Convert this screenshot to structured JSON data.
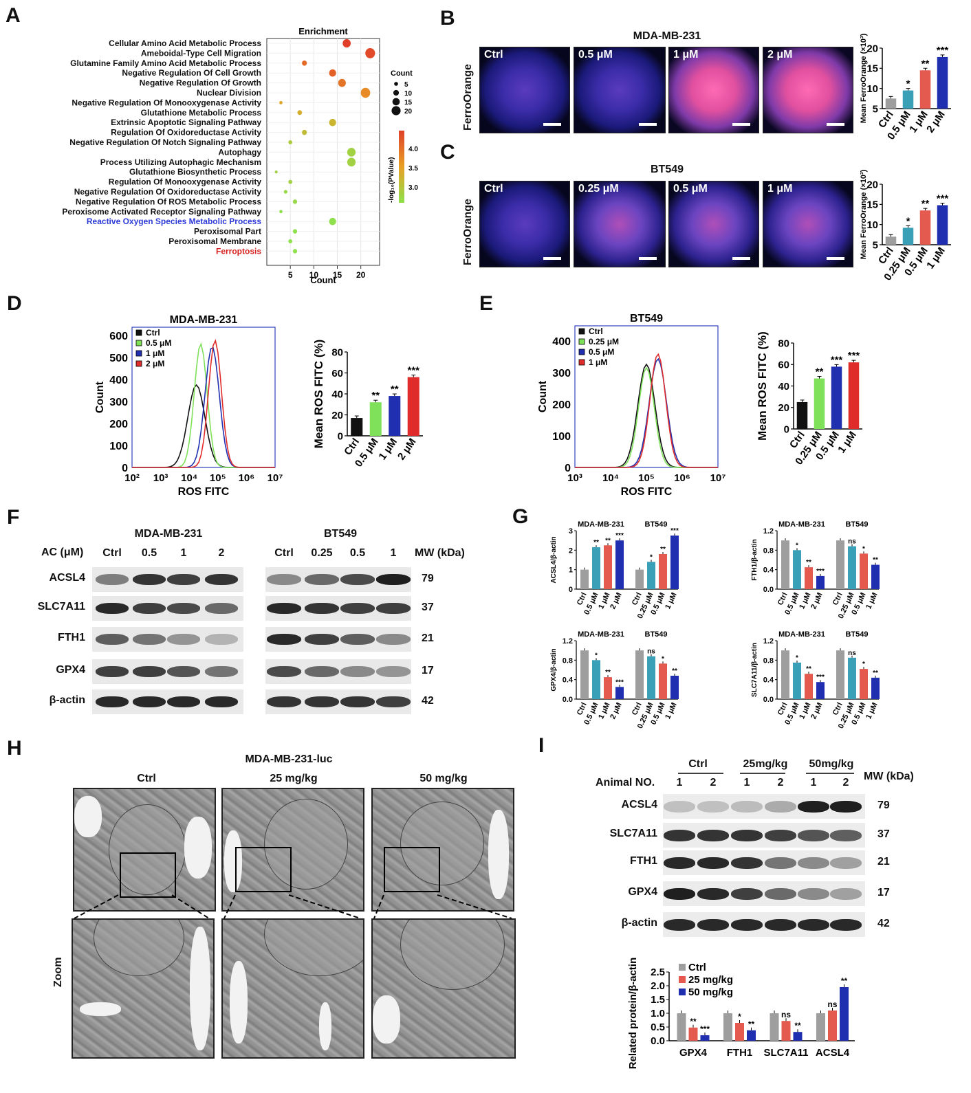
{
  "panels": {
    "A": "A",
    "B": "B",
    "C": "C",
    "D": "D",
    "E": "E",
    "F": "F",
    "G": "G",
    "H": "H",
    "I": "I"
  },
  "colors": {
    "ctrl_gray": "#9e9e9e",
    "teal": "#3aa0b7",
    "salmon": "#e55a4e",
    "navy": "#1f2fb0",
    "green": "#7fe05a",
    "red": "#e02b2b",
    "black": "#111111",
    "enrich_blue": "#2d3ad8",
    "enrich_red": "#d62020"
  },
  "panelA": {
    "title": "Enrichment",
    "xlabel": "Count",
    "legend_count_title": "Count",
    "legend_count_values": [
      "5",
      "10",
      "15",
      "20"
    ],
    "legend_p_title": "-log₁₀(PValue)",
    "legend_p_ticks": [
      "4.0",
      "3.5",
      "3.0"
    ],
    "terms": [
      "Cellular Amino Acid Metabolic Process",
      "Ameboidal-Type Cell Migration",
      "Glutamine Family Amino Acid Metabolic Process",
      "Negative Regulation Of Cell Growth",
      "Negative Regulation Of Growth",
      "Nuclear Division",
      "Negative Regulation Of Monooxygenase Activity",
      "Glutathione Metabolic Process",
      "Extrinsic Apoptotic Signaling Pathway",
      "Regulation Of Oxidoreductase Activity",
      "Negative Regulation Of Notch Signaling Pathway",
      "Autophagy",
      "Process Utilizing Autophagic Mechanism",
      "Glutathione Biosynthetic Process",
      "Regulation Of Monooxygenase Activity",
      "Negative Regulation Of Oxidoreductase Activity",
      "Negative Regulation Of ROS Metabolic Process",
      "Peroxisome Activated Receptor Signaling Pathway",
      "Reactive Oxygen Species Metabolic Process",
      "Peroxisomal Part",
      "Peroxisomal Membrane",
      "Ferroptosis"
    ],
    "counts": [
      17,
      22,
      8,
      14,
      16,
      21,
      3,
      7,
      14,
      8,
      5,
      18,
      18,
      2,
      5,
      4,
      6,
      3,
      14,
      6,
      5,
      6
    ],
    "neglog10p": [
      4.4,
      4.3,
      4.0,
      4.1,
      3.9,
      3.7,
      3.4,
      3.3,
      3.2,
      3.1,
      2.9,
      2.8,
      2.8,
      2.8,
      2.8,
      2.7,
      2.7,
      2.6,
      2.6,
      2.6,
      2.6,
      2.6
    ],
    "highlight_blue": "Reactive Oxygen Species Metabolic Process",
    "highlight_red": "Ferroptosis",
    "xticks": [
      "5",
      "10",
      "15",
      "20"
    ]
  },
  "panelB": {
    "title": "MDA-MB-231",
    "ylabel_left": "FerroOrange",
    "labels": [
      "Ctrl",
      "0.5 μM",
      "1 μM",
      "2 μM"
    ],
    "chart_data": {
      "type": "bar",
      "categories": [
        "Ctrl",
        "0.5 μM",
        "1 μM",
        "2 μM"
      ],
      "values": [
        7.5,
        9.5,
        14.5,
        17.8
      ],
      "ylim": [
        5,
        20
      ],
      "yticks": [
        "5",
        "10",
        "15",
        "20"
      ],
      "ylabel": "Mean FerroOrange (×10³)",
      "sig": [
        "",
        "*",
        "**",
        "***"
      ]
    }
  },
  "panelC": {
    "title": "BT549",
    "ylabel_left": "FerroOrange",
    "labels": [
      "Ctrl",
      "0.25 μM",
      "0.5 μM",
      "1 μM"
    ],
    "chart_data": {
      "type": "bar",
      "categories": [
        "Ctrl",
        "0.25 μM",
        "0.5 μM",
        "1 μM"
      ],
      "values": [
        7.0,
        9.2,
        13.5,
        14.8
      ],
      "ylim": [
        5,
        20
      ],
      "yticks": [
        "5",
        "10",
        "15",
        "20"
      ],
      "ylabel": "Mean FerroOrange (×10³)",
      "sig": [
        "",
        "*",
        "**",
        "***"
      ]
    }
  },
  "panelD": {
    "hist_title": "MDA-MB-231",
    "hist_xlabel": "ROS FITC",
    "hist_ylabel": "Count",
    "hist_yticks": [
      "0",
      "100",
      "200",
      "300",
      "400",
      "500",
      "600"
    ],
    "hist_xticks": [
      "10²",
      "10³",
      "10⁴",
      "10⁵",
      "10⁶",
      "10⁷"
    ],
    "legend": [
      "Ctrl",
      "0.5 μM",
      "1 μM",
      "2 μM"
    ],
    "chart_data": {
      "type": "bar",
      "categories": [
        "Ctrl",
        "0.5 μM",
        "1 μM",
        "2 μM"
      ],
      "values": [
        17,
        32,
        38,
        56
      ],
      "ylim": [
        0,
        80
      ],
      "yticks": [
        "0",
        "20",
        "40",
        "60",
        "80"
      ],
      "ylabel": "Mean ROS FITC (%)",
      "sig": [
        "",
        "**",
        "**",
        "***"
      ]
    }
  },
  "panelE": {
    "hist_title": "BT549",
    "hist_xlabel": "ROS FITC",
    "hist_ylabel": "Count",
    "hist_yticks": [
      "0",
      "100",
      "200",
      "300",
      "400"
    ],
    "hist_xticks": [
      "10³",
      "10⁴",
      "10⁵",
      "10⁶",
      "10⁷"
    ],
    "legend": [
      "Ctrl",
      "0.25 μM",
      "0.5 μM",
      "1 μM"
    ],
    "chart_data": {
      "type": "bar",
      "categories": [
        "Ctrl",
        "0.25 μM",
        "0.5 μM",
        "1 μM"
      ],
      "values": [
        25,
        47,
        58,
        62
      ],
      "ylim": [
        0,
        80
      ],
      "yticks": [
        "0",
        "20",
        "40",
        "60",
        "80"
      ],
      "ylabel": "Mean ROS FITC (%)",
      "sig": [
        "",
        "**",
        "***",
        "***"
      ]
    }
  },
  "panelF": {
    "cell1": "MDA-MB-231",
    "cell2": "BT549",
    "dose_label": "AC (μM)",
    "doses1": [
      "Ctrl",
      "0.5",
      "1",
      "2"
    ],
    "doses2": [
      "Ctrl",
      "0.25",
      "0.5",
      "1"
    ],
    "mw_label": "MW (kDa)",
    "proteins": [
      "ACSL4",
      "SLC7A11",
      "FTH1",
      "GPX4",
      "β-actin"
    ],
    "mw": [
      "79",
      "37",
      "21",
      "17",
      "42"
    ]
  },
  "panelG": {
    "cell1": "MDA-MB-231",
    "cell2": "BT549",
    "cats1": [
      "Ctrl",
      "0.5 μM",
      "1 μM",
      "2 μM"
    ],
    "cats2": [
      "Ctrl",
      "0.25 μM",
      "0.5 μM",
      "1 μM"
    ],
    "charts": [
      {
        "type": "bar",
        "ylabel": "ACSL4/β-actin",
        "ylim": [
          0,
          3
        ],
        "yticks": [
          "0",
          "1",
          "2",
          "3"
        ],
        "values1": [
          1.0,
          2.15,
          2.25,
          2.5
        ],
        "values2": [
          1.0,
          1.4,
          1.8,
          2.75
        ],
        "sig1": [
          "",
          "**",
          "**",
          "***"
        ],
        "sig2": [
          "",
          "*",
          "**",
          "***"
        ]
      },
      {
        "type": "bar",
        "ylabel": "FTH1/β-actin",
        "ylim": [
          0,
          1.2
        ],
        "yticks": [
          "0.0",
          "0.4",
          "0.8",
          "1.2"
        ],
        "values1": [
          1.0,
          0.8,
          0.45,
          0.27
        ],
        "values2": [
          1.0,
          0.88,
          0.73,
          0.5
        ],
        "sig1": [
          "",
          "*",
          "**",
          "***"
        ],
        "sig2": [
          "",
          "ns",
          "*",
          "**"
        ]
      },
      {
        "type": "bar",
        "ylabel": "GPX4/β-actin",
        "ylim": [
          0,
          1.2
        ],
        "yticks": [
          "0.0",
          "0.4",
          "0.8",
          "1.2"
        ],
        "values1": [
          1.0,
          0.8,
          0.45,
          0.25
        ],
        "values2": [
          1.0,
          0.88,
          0.73,
          0.48
        ],
        "sig1": [
          "",
          "*",
          "**",
          "***"
        ],
        "sig2": [
          "",
          "ns",
          "*",
          "**"
        ]
      },
      {
        "type": "bar",
        "ylabel": "SLC7A11/β-actin",
        "ylim": [
          0,
          1.2
        ],
        "yticks": [
          "0.0",
          "0.4",
          "0.8",
          "1.2"
        ],
        "values1": [
          1.0,
          0.75,
          0.52,
          0.35
        ],
        "values2": [
          1.0,
          0.85,
          0.62,
          0.44
        ],
        "sig1": [
          "",
          "*",
          "**",
          "***"
        ],
        "sig2": [
          "",
          "ns",
          "*",
          "**"
        ]
      }
    ]
  },
  "panelH": {
    "title": "MDA-MB-231-luc",
    "groups": [
      "Ctrl",
      "25 mg/kg",
      "50 mg/kg"
    ],
    "zoom_label": "Zoom"
  },
  "panelI": {
    "group_ctrl": "Ctrl",
    "group_25": "25mg/kg",
    "group_50": "50mg/kg",
    "animal_label": "Animal NO.",
    "animal_nums": [
      "1",
      "2",
      "1",
      "2",
      "1",
      "2"
    ],
    "mw_label": "MW (kDa)",
    "proteins": [
      "ACSL4",
      "SLC7A11",
      "FTH1",
      "GPX4",
      "β-actin"
    ],
    "mw": [
      "79",
      "37",
      "21",
      "17",
      "42"
    ],
    "chart_data": {
      "type": "bar",
      "categories": [
        "GPX4",
        "FTH1",
        "SLC7A11",
        "ACSL4"
      ],
      "series": [
        {
          "name": "Ctrl",
          "values": [
            1.0,
            1.0,
            1.0,
            1.0
          ]
        },
        {
          "name": "25 mg/kg",
          "values": [
            0.48,
            0.65,
            0.72,
            1.1
          ]
        },
        {
          "name": "50 mg/kg",
          "values": [
            0.2,
            0.38,
            0.32,
            1.95
          ]
        }
      ],
      "sig": [
        [
          "",
          "**",
          "***"
        ],
        [
          "",
          "*",
          "**"
        ],
        [
          "",
          "ns",
          "**"
        ],
        [
          "",
          "ns",
          "**"
        ]
      ],
      "ylim": [
        0,
        2.5
      ],
      "yticks": [
        "0.0",
        "0.5",
        "1.0",
        "1.5",
        "2.0",
        "2.5"
      ],
      "ylabel": "Related protein/β-actin"
    }
  }
}
